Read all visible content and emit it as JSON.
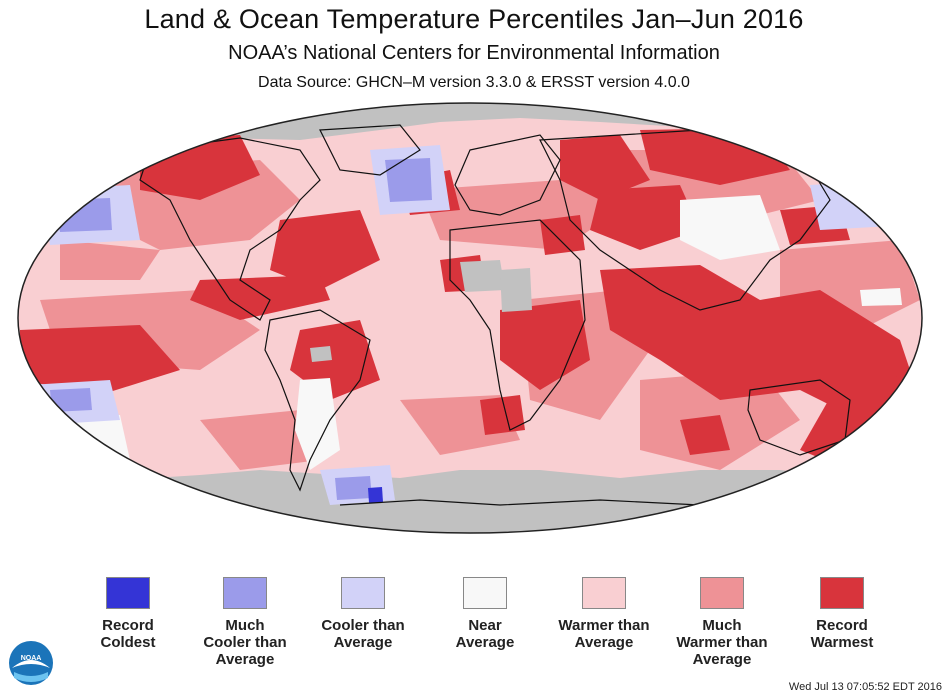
{
  "title": "Land & Ocean Temperature Percentiles Jan–Jun 2016",
  "subtitle": "NOAA’s National Centers for Environmental Information",
  "source": "Data Source: GHCN–M version 3.3.0 & ERSST version 4.0.0",
  "legend": [
    {
      "label": "Record\nColdest",
      "color": "#3434d6"
    },
    {
      "label": "Much\nCooler than\nAverage",
      "color": "#9b9bea"
    },
    {
      "label": "Cooler than\nAverage",
      "color": "#d2d2f8"
    },
    {
      "label": "Near\nAverage",
      "color": "#f8f8f8"
    },
    {
      "label": "Warmer than\nAverage",
      "color": "#f9cfd2"
    },
    {
      "label": "Much\nWarmer than\nAverage",
      "color": "#ee9296"
    },
    {
      "label": "Record\nWarmest",
      "color": "#d8343c"
    }
  ],
  "no_data_color": "#c1c1c1",
  "timestamp": "Wed Jul 13 07:05:52 EDT 2016",
  "logo_text": "NOAA"
}
